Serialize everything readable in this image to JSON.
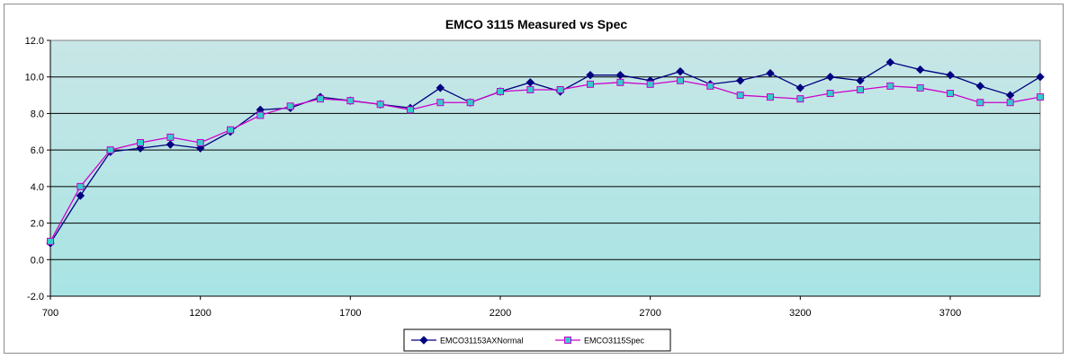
{
  "chart_data": {
    "type": "line",
    "title": "EMCO 3115 Measured vs Spec",
    "xlabel": "",
    "ylabel": "",
    "xlim": [
      700,
      4000
    ],
    "ylim": [
      -2.0,
      12.0
    ],
    "x_ticks": [
      "700",
      "1200",
      "1700",
      "2200",
      "2700",
      "3200",
      "3700"
    ],
    "x_tick_values": [
      700,
      1200,
      1700,
      2200,
      2700,
      3200,
      3700
    ],
    "y_ticks": [
      "12.0",
      "10.0",
      "8.0",
      "6.0",
      "4.0",
      "2.0",
      "0.0",
      "-2.0"
    ],
    "y_tick_values": [
      12,
      10,
      8,
      6,
      4,
      2,
      0,
      -2
    ],
    "grid": "horizontal",
    "legend_position": "bottom",
    "plot_background": [
      "#c8e6e6",
      "#a8e4e4"
    ],
    "x": [
      700,
      800,
      900,
      1000,
      1100,
      1200,
      1300,
      1400,
      1500,
      1600,
      1700,
      1800,
      1900,
      2000,
      2100,
      2200,
      2300,
      2400,
      2500,
      2600,
      2700,
      2800,
      2900,
      3000,
      3100,
      3200,
      3300,
      3400,
      3500,
      3600,
      3700,
      3800,
      3900,
      4000
    ],
    "series": [
      {
        "name": "EMCO31153AXNormal",
        "color": "#000080",
        "marker": "diamond",
        "values": [
          0.9,
          3.5,
          5.9,
          6.1,
          6.3,
          6.1,
          7.0,
          8.2,
          8.3,
          8.9,
          8.7,
          8.5,
          8.3,
          9.4,
          8.6,
          9.2,
          9.7,
          9.2,
          10.1,
          10.1,
          9.8,
          10.3,
          9.6,
          9.8,
          10.2,
          9.4,
          10.0,
          9.8,
          10.8,
          10.4,
          10.1,
          9.5,
          9.0,
          10.0
        ]
      },
      {
        "name": "EMCO3115Spec",
        "color": "#cc00cc",
        "marker": "square",
        "marker_fill": "#33cccc",
        "values": [
          1.0,
          4.0,
          6.0,
          6.4,
          6.7,
          6.4,
          7.1,
          7.9,
          8.4,
          8.8,
          8.7,
          8.5,
          8.2,
          8.6,
          8.6,
          9.2,
          9.3,
          9.3,
          9.6,
          9.7,
          9.6,
          9.8,
          9.5,
          9.0,
          8.9,
          8.8,
          9.1,
          9.3,
          9.5,
          9.4,
          9.1,
          8.6,
          8.6,
          8.9
        ]
      }
    ]
  }
}
